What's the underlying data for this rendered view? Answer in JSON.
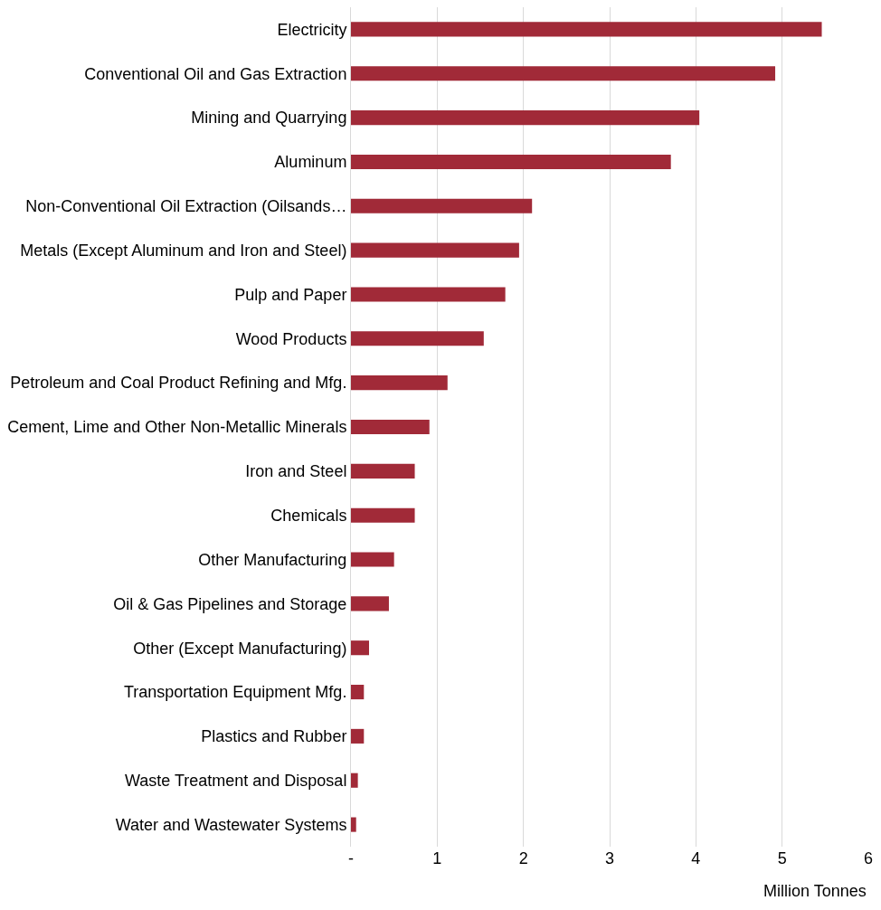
{
  "chart_data": {
    "type": "bar",
    "orientation": "horizontal",
    "xlabel": "Million Tonnes",
    "categories": [
      "Electricity",
      "Conventional Oil and Gas Extraction",
      "Mining and Quarrying",
      "Aluminum",
      "Non-Conventional Oil Extraction (Oilsands…",
      "Metals (Except Aluminum and Iron and Steel)",
      "Pulp and Paper",
      "Wood Products",
      "Petroleum and Coal Product Refining and Mfg.",
      "Cement, Lime and Other Non-Metallic Minerals",
      "Iron and Steel",
      "Chemicals",
      "Other Manufacturing",
      "Oil & Gas Pipelines and Storage",
      "Other (Except Manufacturing)",
      "Transportation Equipment Mfg.",
      "Plastics and Rubber",
      "Waste Treatment and Disposal",
      "Water and Wastewater Systems"
    ],
    "values": [
      5.46,
      4.92,
      4.04,
      3.71,
      2.1,
      1.95,
      1.79,
      1.54,
      1.12,
      0.91,
      0.74,
      0.74,
      0.5,
      0.44,
      0.21,
      0.15,
      0.15,
      0.08,
      0.06
    ],
    "color": "#a12a38",
    "xlim": [
      0,
      6
    ],
    "xticks": [
      {
        "value": 0,
        "label": "-"
      },
      1,
      2,
      3,
      4,
      5,
      6
    ],
    "grid": "x"
  }
}
